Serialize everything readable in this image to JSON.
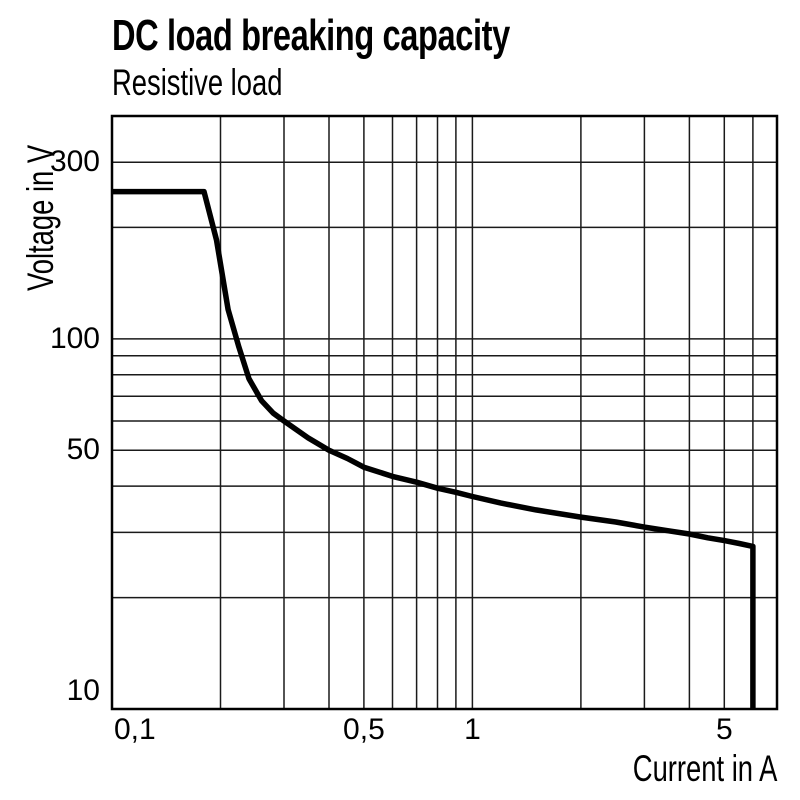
{
  "chart_data": {
    "type": "line",
    "title": "DC load breaking capacity",
    "subtitle": "Resistive load",
    "xlabel": "Current in A",
    "ylabel": "Voltage in V",
    "x_scale": "log",
    "y_scale": "log",
    "xlim": [
      0.1,
      7
    ],
    "ylim": [
      10,
      400
    ],
    "grid": true,
    "legend": false,
    "x_gridlines": [
      0.1,
      0.2,
      0.3,
      0.4,
      0.5,
      0.6,
      0.7,
      0.8,
      0.9,
      1,
      2,
      3,
      4,
      5,
      6,
      7
    ],
    "y_gridlines": [
      10,
      20,
      30,
      40,
      50,
      60,
      70,
      80,
      90,
      100,
      200,
      300,
      400
    ],
    "x_ticks": [
      {
        "value": 0.1,
        "label": "0,1"
      },
      {
        "value": 0.5,
        "label": "0,5"
      },
      {
        "value": 1,
        "label": "1"
      },
      {
        "value": 5,
        "label": "5"
      }
    ],
    "y_ticks": [
      {
        "value": 300,
        "label": "300"
      },
      {
        "value": 100,
        "label": "100"
      },
      {
        "value": 50,
        "label": "50"
      },
      {
        "value": 10,
        "label": "10"
      }
    ],
    "series": [
      {
        "name": "DC breaking capacity, resistive load",
        "color": "#000000",
        "points": [
          [
            0.1,
            250
          ],
          [
            0.18,
            250
          ],
          [
            0.195,
            185
          ],
          [
            0.21,
            120
          ],
          [
            0.225,
            95
          ],
          [
            0.24,
            78
          ],
          [
            0.26,
            68
          ],
          [
            0.28,
            63
          ],
          [
            0.3,
            60
          ],
          [
            0.35,
            54
          ],
          [
            0.4,
            50
          ],
          [
            0.45,
            47.5
          ],
          [
            0.5,
            45
          ],
          [
            0.6,
            42.5
          ],
          [
            0.7,
            41
          ],
          [
            0.8,
            39.5
          ],
          [
            0.9,
            38.5
          ],
          [
            1,
            37.5
          ],
          [
            1.2,
            36
          ],
          [
            1.5,
            34.5
          ],
          [
            2,
            33
          ],
          [
            2.5,
            32
          ],
          [
            3,
            31
          ],
          [
            3.5,
            30.3
          ],
          [
            4,
            29.7
          ],
          [
            4.5,
            29
          ],
          [
            5,
            28.5
          ],
          [
            5.5,
            28
          ],
          [
            6,
            27.5
          ],
          [
            6,
            10
          ]
        ]
      }
    ]
  },
  "colors": {
    "background": "#ffffff",
    "text": "#000000",
    "grid": "#1a1a1a",
    "axis": "#000000",
    "curve": "#000000"
  }
}
